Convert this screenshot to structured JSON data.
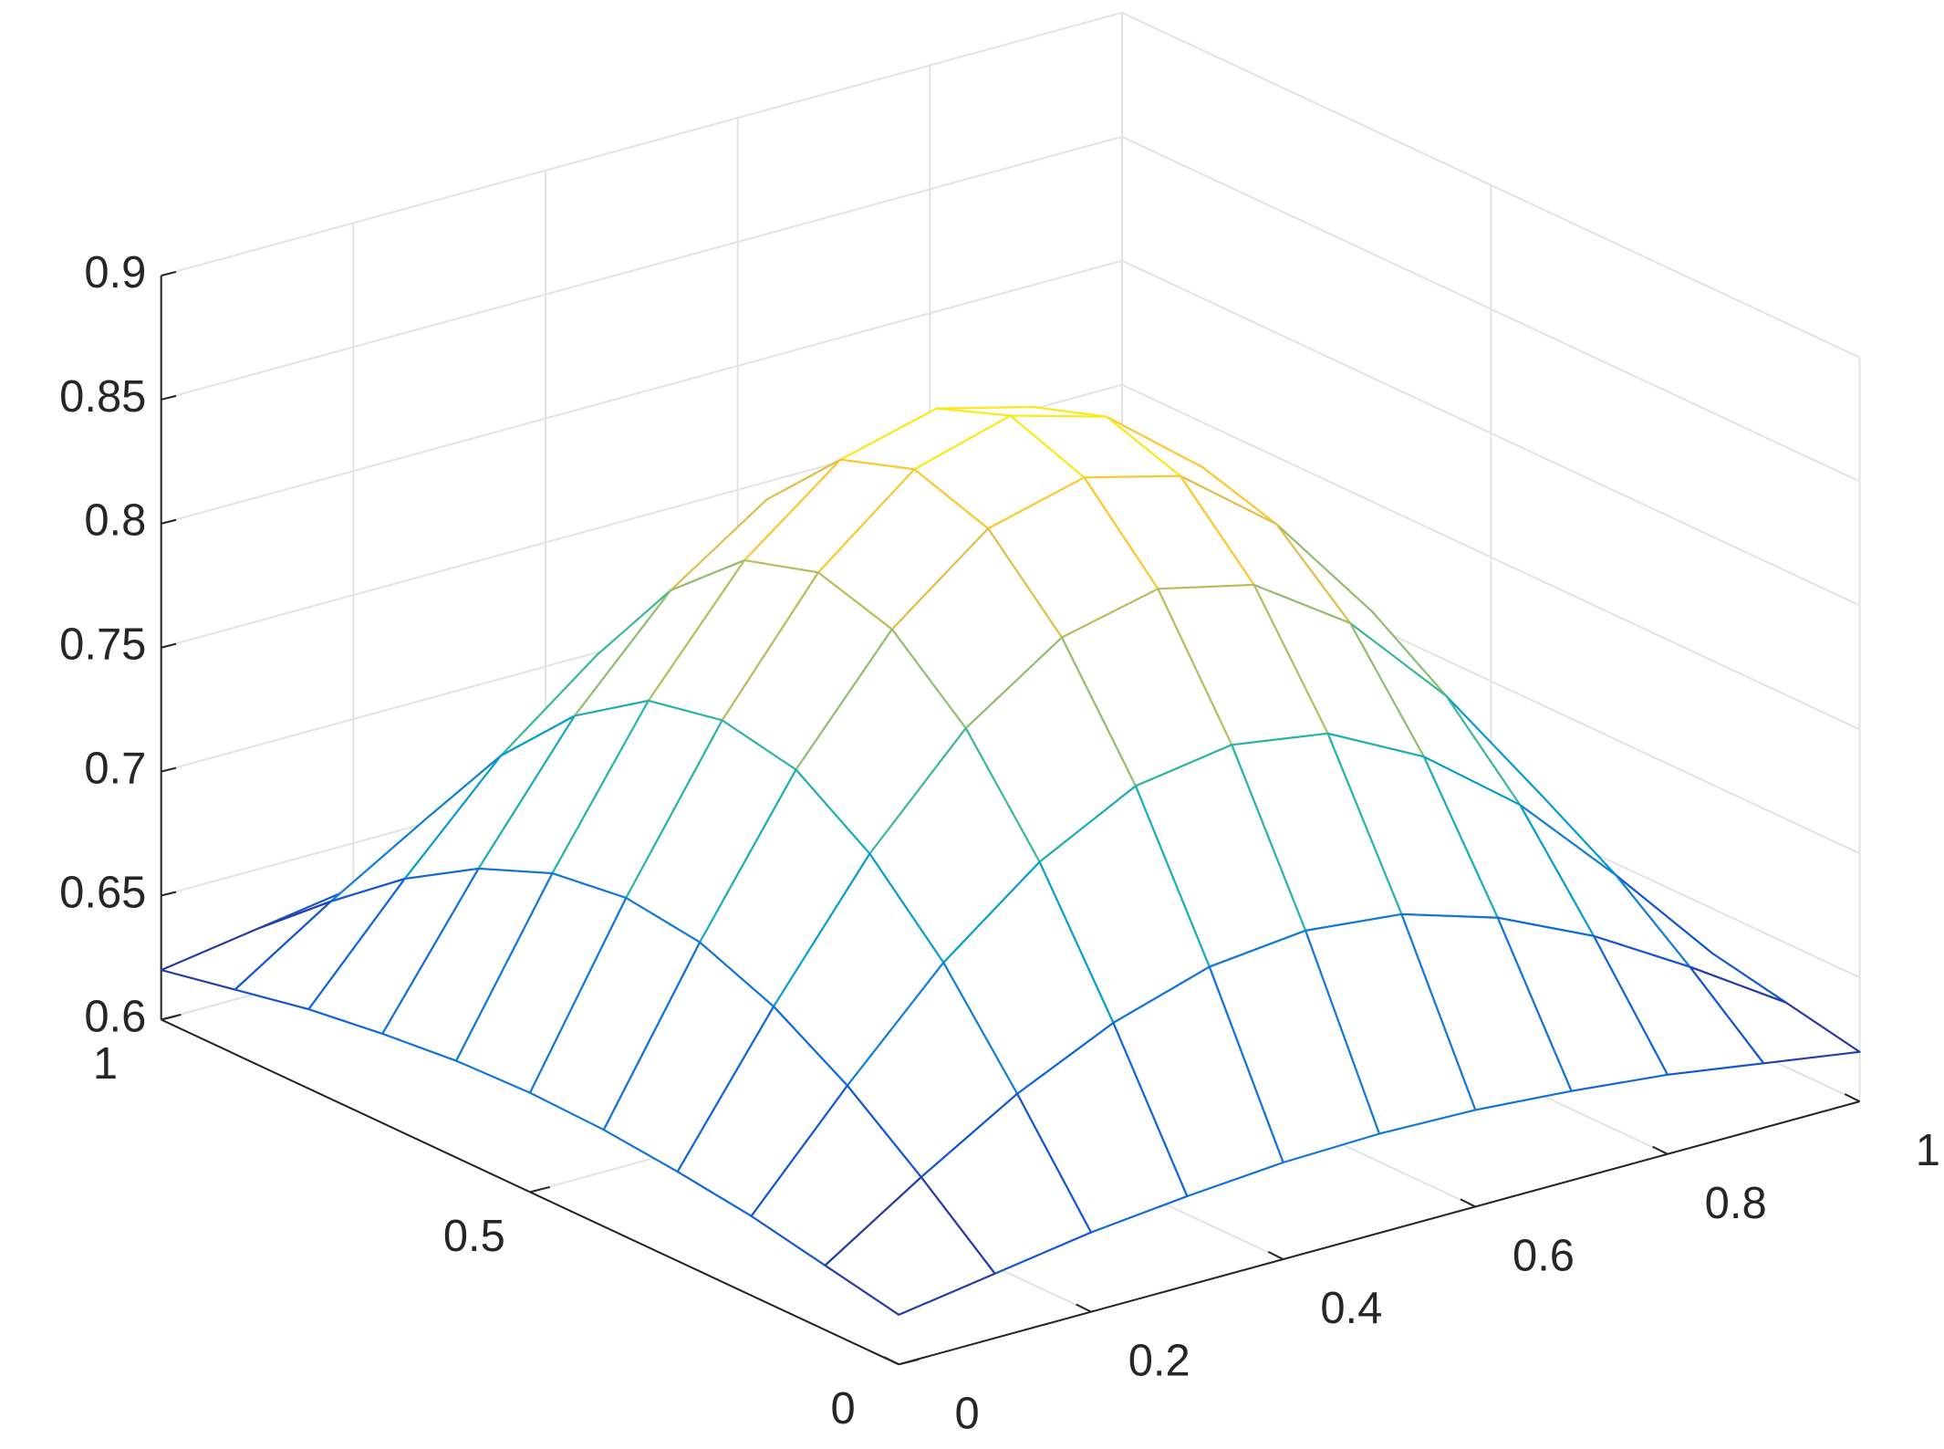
{
  "chart_data": {
    "type": "mesh",
    "x": [
      0,
      0.1,
      0.2,
      0.3,
      0.4,
      0.5,
      0.6,
      0.7,
      0.8,
      0.9,
      1
    ],
    "y": [
      0,
      0.1,
      0.2,
      0.3,
      0.4,
      0.5,
      0.6,
      0.7,
      0.8,
      0.9,
      1
    ],
    "z": [
      [
        0.62,
        0.626,
        0.632,
        0.636,
        0.639,
        0.64,
        0.639,
        0.636,
        0.632,
        0.626,
        0.62
      ],
      [
        0.626,
        0.651,
        0.674,
        0.692,
        0.704,
        0.708,
        0.704,
        0.692,
        0.674,
        0.651,
        0.626
      ],
      [
        0.632,
        0.674,
        0.713,
        0.743,
        0.763,
        0.769,
        0.763,
        0.743,
        0.713,
        0.674,
        0.632
      ],
      [
        0.636,
        0.692,
        0.743,
        0.783,
        0.809,
        0.818,
        0.809,
        0.783,
        0.743,
        0.692,
        0.636
      ],
      [
        0.639,
        0.704,
        0.763,
        0.809,
        0.839,
        0.849,
        0.839,
        0.809,
        0.763,
        0.704,
        0.639
      ],
      [
        0.64,
        0.708,
        0.769,
        0.818,
        0.849,
        0.86,
        0.849,
        0.818,
        0.769,
        0.708,
        0.64
      ],
      [
        0.639,
        0.704,
        0.763,
        0.809,
        0.839,
        0.849,
        0.839,
        0.809,
        0.763,
        0.704,
        0.639
      ],
      [
        0.636,
        0.692,
        0.743,
        0.783,
        0.809,
        0.818,
        0.809,
        0.783,
        0.743,
        0.692,
        0.636
      ],
      [
        0.632,
        0.674,
        0.713,
        0.743,
        0.763,
        0.769,
        0.763,
        0.743,
        0.713,
        0.674,
        0.632
      ],
      [
        0.626,
        0.651,
        0.674,
        0.692,
        0.704,
        0.708,
        0.704,
        0.692,
        0.674,
        0.651,
        0.626
      ],
      [
        0.62,
        0.626,
        0.632,
        0.636,
        0.639,
        0.64,
        0.639,
        0.636,
        0.632,
        0.626,
        0.62
      ]
    ],
    "xlim": [
      0,
      1
    ],
    "ylim": [
      0,
      1
    ],
    "zlim": [
      0.6,
      0.9
    ],
    "xticks": [
      0,
      0.2,
      0.4,
      0.6,
      0.8,
      1
    ],
    "yticks": [
      0,
      0.5,
      1
    ],
    "zticks": [
      0.6,
      0.65,
      0.7,
      0.75,
      0.8,
      0.85,
      0.9
    ],
    "grid": true,
    "colormap": [
      "#352a87",
      "#0f5cdd",
      "#1481d6",
      "#06a4ca",
      "#2eb7a4",
      "#87bf77",
      "#d1bb59",
      "#fec832",
      "#f9fb0e"
    ]
  }
}
